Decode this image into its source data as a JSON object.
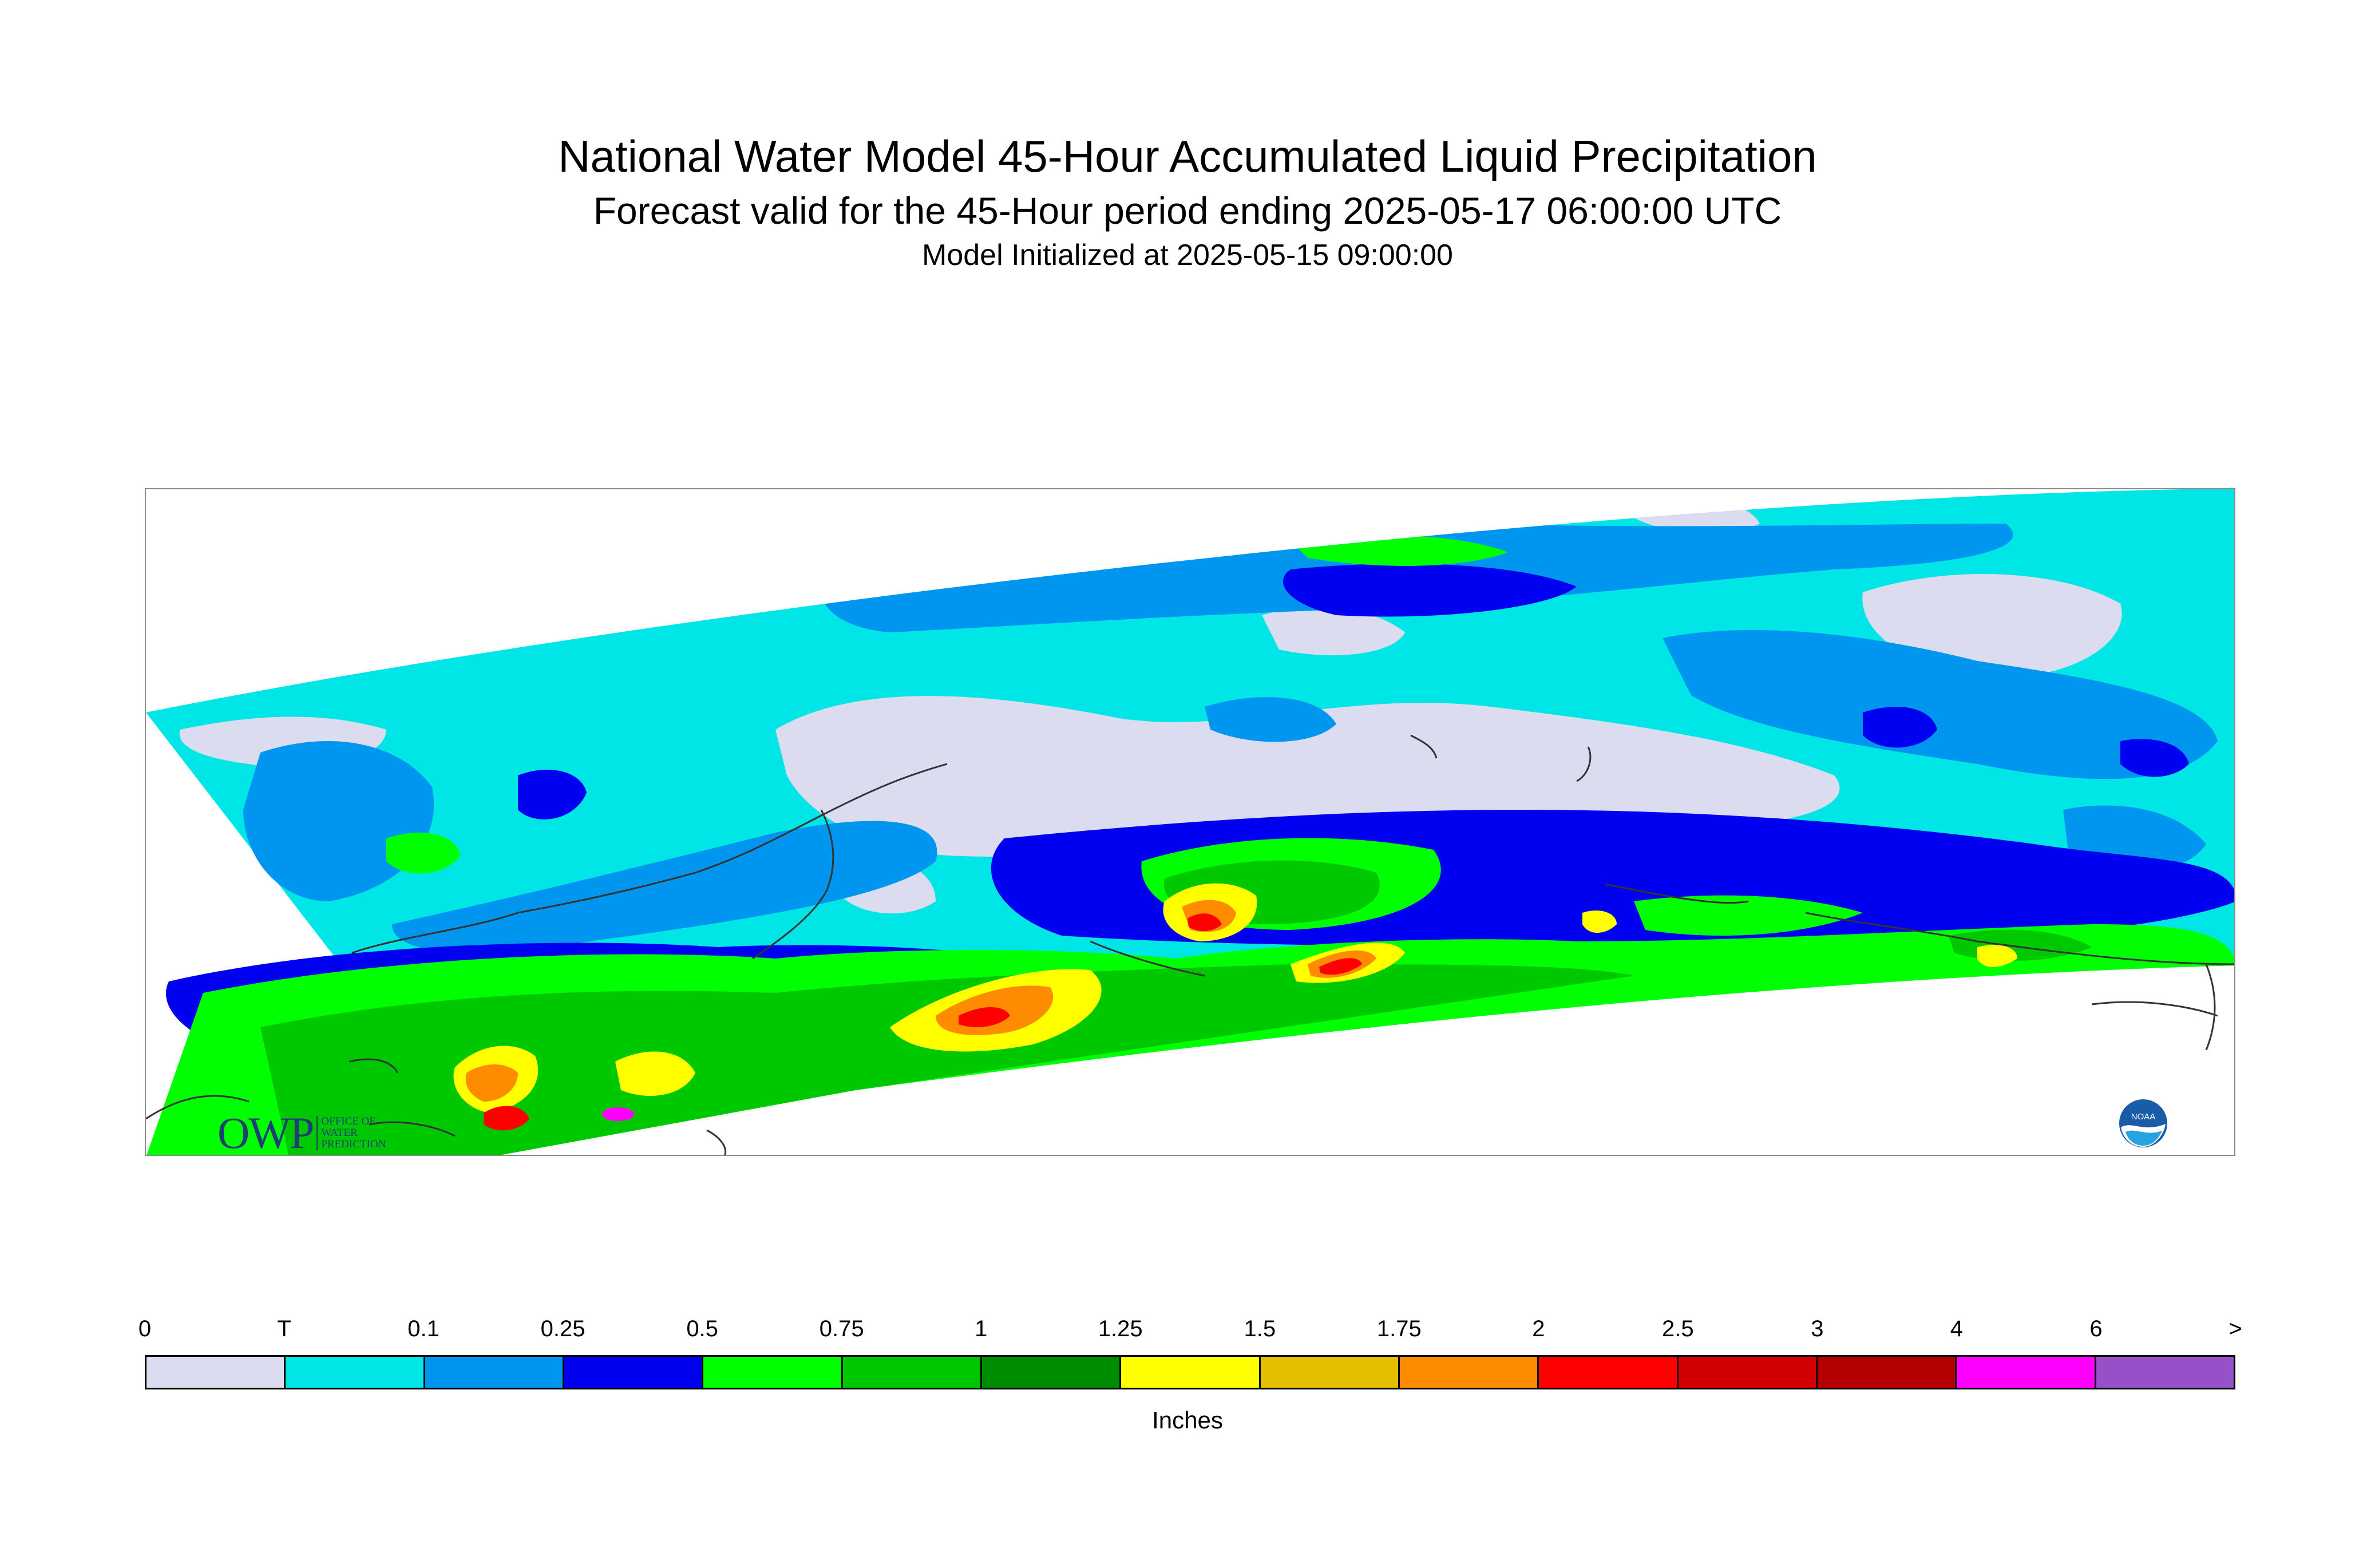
{
  "header": {
    "title": "National Water Model 45-Hour Accumulated Liquid Precipitation",
    "subtitle": "Forecast valid for the 45-Hour period ending 2025-05-17 06:00:00 UTC",
    "init_line": "Model Initialized at 2025-05-15 09:00:00"
  },
  "logos": {
    "owp_big": "OWP",
    "owp_small_1": "Office of",
    "owp_small_2": "Water",
    "owp_small_3": "Prediction",
    "noaa": "NOAA"
  },
  "legend": {
    "units_label": "Inches",
    "tick_labels": [
      "0",
      "T",
      "0.1",
      "0.25",
      "0.5",
      "0.75",
      "1",
      "1.25",
      "1.5",
      "1.75",
      "2",
      "2.5",
      "3",
      "4",
      "6",
      ">"
    ],
    "colors": [
      "#dcdcf0",
      "#00e5e5",
      "#0096f0",
      "#0000f0",
      "#00ff00",
      "#00c800",
      "#008c00",
      "#ffff00",
      "#e6be00",
      "#ff8c00",
      "#ff0000",
      "#d20000",
      "#b40000",
      "#ff00ff",
      "#9650c8"
    ]
  }
}
